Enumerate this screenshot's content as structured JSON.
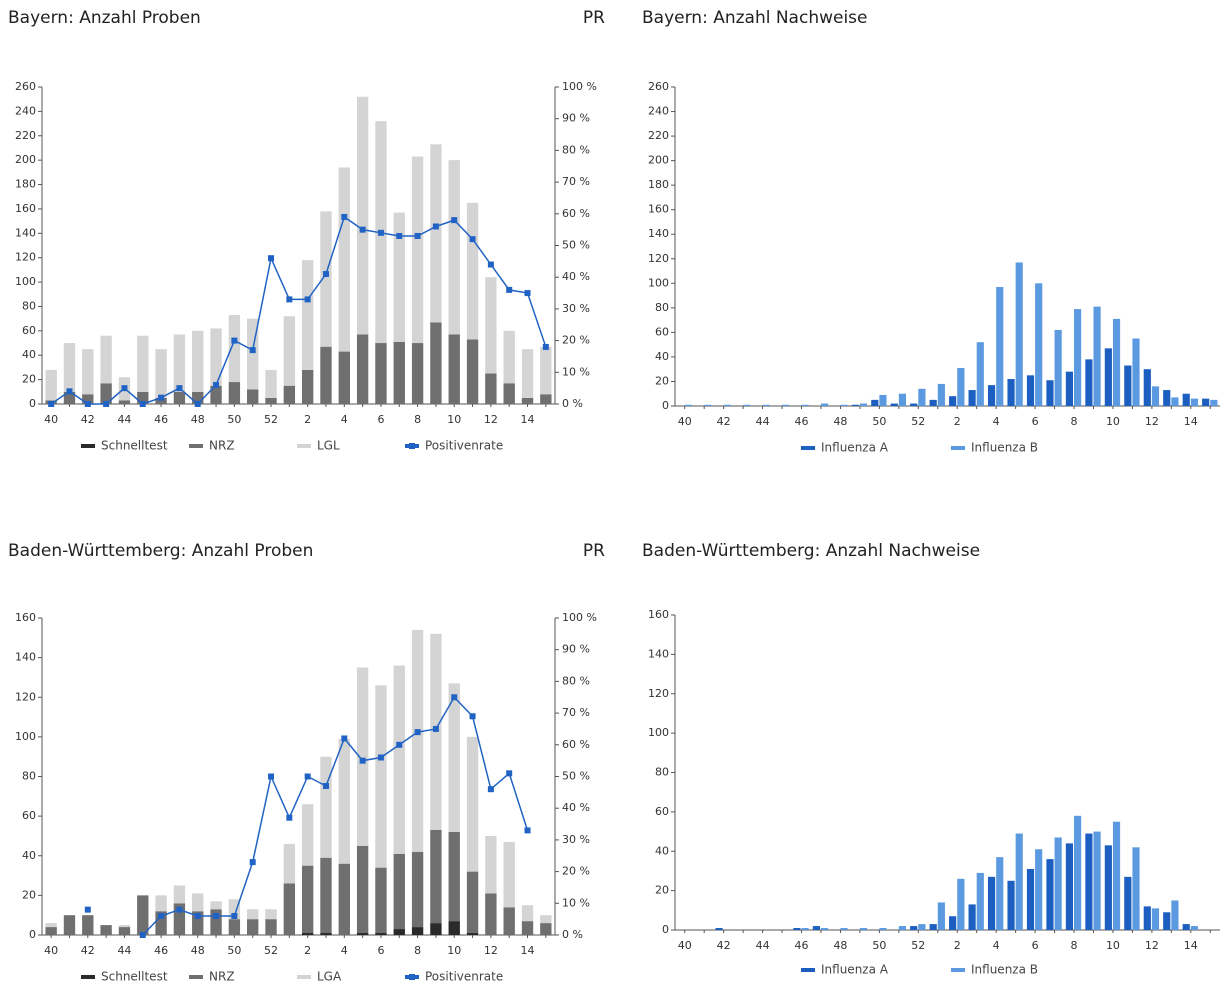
{
  "chart_data": [
    {
      "type": "bar",
      "stacked": true,
      "title": "Bayern: Anzahl Proben",
      "y2_label": "PR",
      "categories": [
        "40",
        null,
        "42",
        null,
        "44",
        null,
        "46",
        null,
        "48",
        null,
        "50",
        null,
        "52",
        null,
        "2",
        null,
        "4",
        null,
        "6",
        null,
        "8",
        null,
        "10",
        null,
        "12",
        null,
        "14",
        null
      ],
      "ylim": [
        0,
        260
      ],
      "yticks": [
        0,
        20,
        40,
        60,
        80,
        100,
        120,
        140,
        160,
        180,
        200,
        220,
        240,
        260
      ],
      "y2lim": [
        0,
        100
      ],
      "y2ticks": [
        {
          "value": 0,
          "label": "0 %"
        },
        {
          "value": 10,
          "label": "10 %"
        },
        {
          "value": 20,
          "label": "20 %"
        },
        {
          "value": 30,
          "label": "30 %"
        },
        {
          "value": 40,
          "label": "40 %"
        },
        {
          "value": 50,
          "label": "50 %"
        },
        {
          "value": 60,
          "label": "60 %"
        },
        {
          "value": 70,
          "label": "70 %"
        },
        {
          "value": 80,
          "label": "80 %"
        },
        {
          "value": 90,
          "label": "90 %"
        },
        {
          "value": 100,
          "label": "100 %"
        }
      ],
      "series": [
        {
          "name": "Schnelltest",
          "color": "#2a2a2a",
          "values": [
            0,
            0,
            0,
            0,
            0,
            0,
            0,
            0,
            0,
            0,
            0,
            0,
            0,
            0,
            0,
            0,
            0,
            0,
            0,
            0,
            0,
            0,
            0,
            0,
            0,
            0,
            0,
            0
          ]
        },
        {
          "name": "NRZ",
          "color": "#6f6f6f",
          "values": [
            3,
            10,
            8,
            17,
            3,
            10,
            5,
            10,
            10,
            15,
            18,
            12,
            5,
            15,
            28,
            47,
            43,
            57,
            50,
            51,
            50,
            67,
            57,
            53,
            25,
            17,
            5,
            8
          ]
        },
        {
          "name": "LGL",
          "color": "#d4d4d4",
          "values": [
            25,
            40,
            37,
            39,
            19,
            46,
            40,
            47,
            50,
            47,
            55,
            58,
            23,
            57,
            90,
            111,
            151,
            195,
            182,
            106,
            153,
            146,
            143,
            112,
            79,
            43,
            40,
            39
          ]
        },
        {
          "name": "Positivenrate",
          "color": "#2163c5",
          "type": "line",
          "axis": "y2",
          "values": [
            0,
            4,
            0,
            0,
            5,
            0,
            2,
            5,
            0,
            6,
            20,
            17,
            46,
            33,
            33,
            41,
            59,
            55,
            54,
            53,
            53,
            56,
            58,
            52,
            44,
            36,
            35,
            18
          ]
        }
      ]
    },
    {
      "type": "bar",
      "stacked": false,
      "title": "Bayern: Anzahl Nachweise",
      "categories": [
        "40",
        null,
        "42",
        null,
        "44",
        null,
        "46",
        null,
        "48",
        null,
        "50",
        null,
        "52",
        null,
        "2",
        null,
        "4",
        null,
        "6",
        null,
        "8",
        null,
        "10",
        null,
        "12",
        null,
        "14",
        null
      ],
      "ylim": [
        0,
        260
      ],
      "yticks": [
        0,
        20,
        40,
        60,
        80,
        100,
        120,
        140,
        160,
        180,
        200,
        220,
        240,
        260
      ],
      "series": [
        {
          "name": "Influenza A",
          "color": "#1c5fc0",
          "values": [
            0,
            0,
            0,
            0,
            0,
            0,
            0,
            0,
            0,
            1,
            5,
            2,
            2,
            5,
            8,
            13,
            17,
            22,
            25,
            21,
            28,
            38,
            47,
            33,
            30,
            13,
            10,
            6
          ]
        },
        {
          "name": "Influenza B",
          "color": "#5b9ae0",
          "values": [
            1,
            1,
            1,
            1,
            1,
            1,
            1,
            2,
            1,
            2,
            9,
            10,
            14,
            18,
            31,
            52,
            97,
            117,
            100,
            62,
            79,
            81,
            71,
            55,
            16,
            7,
            6,
            5
          ]
        }
      ]
    },
    {
      "type": "bar",
      "stacked": true,
      "title": "Baden-Württemberg: Anzahl Proben",
      "y2_label": "PR",
      "categories": [
        "40",
        null,
        "42",
        null,
        "44",
        null,
        "46",
        null,
        "48",
        null,
        "50",
        null,
        "52",
        null,
        "2",
        null,
        "4",
        null,
        "6",
        null,
        "8",
        null,
        "10",
        null,
        "12",
        null,
        "14",
        null
      ],
      "ylim": [
        0,
        160
      ],
      "yticks": [
        0,
        20,
        40,
        60,
        80,
        100,
        120,
        140,
        160
      ],
      "y2lim": [
        0,
        100
      ],
      "y2ticks": [
        {
          "value": 0,
          "label": "0 %"
        },
        {
          "value": 10,
          "label": "10 %"
        },
        {
          "value": 20,
          "label": "20 %"
        },
        {
          "value": 30,
          "label": "30 %"
        },
        {
          "value": 40,
          "label": "40 %"
        },
        {
          "value": 50,
          "label": "50 %"
        },
        {
          "value": 60,
          "label": "60 %"
        },
        {
          "value": 70,
          "label": "70 %"
        },
        {
          "value": 80,
          "label": "80 %"
        },
        {
          "value": 90,
          "label": "90 %"
        },
        {
          "value": 100,
          "label": "100 %"
        }
      ],
      "series": [
        {
          "name": "Schnelltest",
          "color": "#2a2a2a",
          "values": [
            0,
            0,
            0,
            0,
            0,
            0,
            0,
            0,
            0,
            0,
            0,
            0,
            0,
            0,
            1,
            1,
            0,
            1,
            1,
            3,
            4,
            6,
            7,
            1,
            0,
            0,
            0,
            0
          ]
        },
        {
          "name": "NRZ",
          "color": "#6f6f6f",
          "values": [
            4,
            10,
            10,
            5,
            4,
            20,
            12,
            16,
            12,
            13,
            8,
            8,
            8,
            26,
            34,
            38,
            36,
            44,
            33,
            38,
            38,
            47,
            45,
            31,
            21,
            14,
            7,
            6
          ]
        },
        {
          "name": "LGA",
          "color": "#d4d4d4",
          "values": [
            2,
            0,
            0,
            0,
            1,
            0,
            8,
            9,
            9,
            4,
            10,
            5,
            5,
            20,
            31,
            51,
            63,
            90,
            92,
            95,
            112,
            99,
            75,
            68,
            29,
            33,
            8,
            4
          ]
        },
        {
          "name": "Positivenrate",
          "color": "#2163c5",
          "type": "line",
          "axis": "y2",
          "values": [
            null,
            null,
            8,
            null,
            null,
            0,
            6,
            8,
            6,
            6,
            6,
            23,
            50,
            37,
            50,
            47,
            62,
            55,
            56,
            60,
            64,
            65,
            75,
            69,
            46,
            51,
            33,
            null
          ]
        }
      ]
    },
    {
      "type": "bar",
      "stacked": false,
      "title": "Baden-Württemberg: Anzahl Nachweise",
      "categories": [
        "40",
        null,
        "42",
        null,
        "44",
        null,
        "46",
        null,
        "48",
        null,
        "50",
        null,
        "52",
        null,
        "2",
        null,
        "4",
        null,
        "6",
        null,
        "8",
        null,
        "10",
        null,
        "12",
        null,
        "14",
        null
      ],
      "ylim": [
        0,
        160
      ],
      "yticks": [
        0,
        20,
        40,
        60,
        80,
        100,
        120,
        140,
        160
      ],
      "series": [
        {
          "name": "Influenza A",
          "color": "#1c5fc0",
          "values": [
            0,
            0,
            1,
            0,
            0,
            0,
            1,
            2,
            0,
            0,
            0,
            0,
            2,
            3,
            7,
            13,
            27,
            25,
            31,
            36,
            44,
            49,
            43,
            27,
            12,
            9,
            3,
            0
          ]
        },
        {
          "name": "Influenza B",
          "color": "#5b9ae0",
          "values": [
            0,
            0,
            0,
            0,
            0,
            0,
            1,
            1,
            1,
            1,
            1,
            2,
            3,
            14,
            26,
            29,
            37,
            49,
            41,
            47,
            58,
            50,
            55,
            42,
            11,
            15,
            2,
            0
          ]
        }
      ]
    }
  ]
}
